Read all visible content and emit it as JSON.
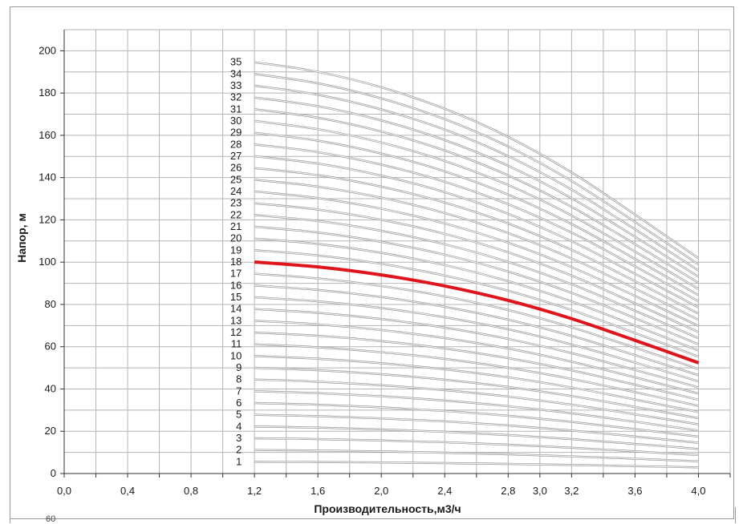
{
  "chart_data": {
    "type": "line",
    "title": "",
    "xlabel": "Производительность,м3/ч",
    "ylabel": "Напор, м",
    "xlim": [
      0.0,
      4.2
    ],
    "ylim": [
      0,
      210
    ],
    "x_ticks": [
      "0,0",
      "0,4",
      "0,8",
      "1,2",
      "1,6",
      "2,0",
      "2,4",
      "2,8",
      "3,0",
      "3,2",
      "3,6",
      "4,0"
    ],
    "x_tick_values": [
      0.0,
      0.4,
      0.8,
      1.2,
      1.6,
      2.0,
      2.4,
      2.8,
      3.0,
      3.2,
      3.6,
      4.0
    ],
    "y_ticks": [
      "0",
      "20",
      "40",
      "60",
      "80",
      "100",
      "120",
      "140",
      "160",
      "180",
      "200"
    ],
    "y_tick_values": [
      0,
      20,
      40,
      60,
      80,
      100,
      120,
      140,
      160,
      180,
      200
    ],
    "grid": true,
    "legend": "none",
    "curve_x": [
      1.2,
      1.6,
      2.0,
      2.4,
      2.8,
      3.2,
      3.6,
      4.0
    ],
    "unit_curve_y": [
      5.56,
      5.43,
      5.22,
      4.93,
      4.55,
      4.07,
      3.5,
      2.91
    ],
    "stage_labels": [
      "1",
      "2",
      "3",
      "4",
      "5",
      "6",
      "7",
      "8",
      "9",
      "10",
      "11",
      "12",
      "13",
      "14",
      "15",
      "16",
      "17",
      "18",
      "19",
      "20",
      "21",
      "22",
      "23",
      "24",
      "25",
      "26",
      "27",
      "28",
      "29",
      "30",
      "31",
      "32",
      "33",
      "34",
      "35"
    ],
    "stage_counts": [
      1,
      2,
      3,
      4,
      5,
      6,
      7,
      8,
      9,
      10,
      11,
      12,
      13,
      14,
      15,
      16,
      17,
      18,
      19,
      20,
      21,
      22,
      23,
      24,
      25,
      26,
      27,
      28,
      29,
      30,
      31,
      32,
      33,
      34,
      35
    ],
    "highlighted_stage": 18,
    "colors": {
      "curve": "#c8c8c8",
      "highlight": "#e0141b",
      "grid": "#b4b4b4"
    }
  },
  "below_frame_text": "60"
}
